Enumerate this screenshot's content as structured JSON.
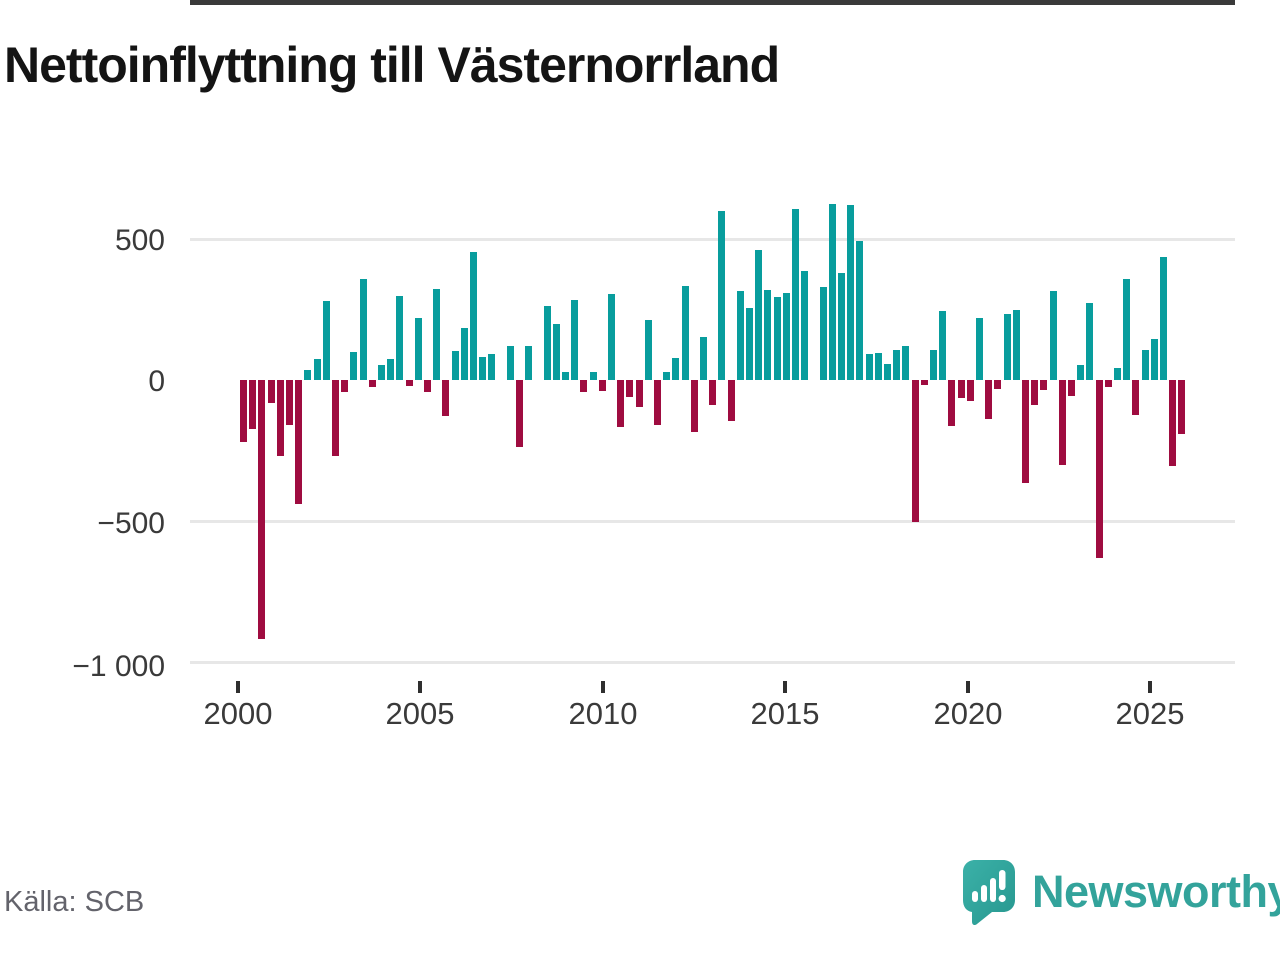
{
  "title": "Nettoinflyttning till Västernorrland",
  "source": "Källa: SCB",
  "logo": {
    "text": "Newsworthy"
  },
  "chart_data": {
    "type": "bar",
    "title": "Nettoinflyttning till Västernorrland",
    "xlabel": "",
    "ylabel": "",
    "frequency": "quarterly",
    "grid": true,
    "legend": false,
    "ylim": [
      -1000,
      650
    ],
    "y_ticks": [
      500,
      0,
      -500,
      -1000
    ],
    "y_tick_labels": [
      "500",
      "0",
      "−500",
      "−1 000"
    ],
    "x_tick_labels": [
      "2000",
      "2005",
      "2010",
      "2015",
      "2020",
      "2025"
    ],
    "colors": {
      "positive": "#089d9d",
      "negative": "#9f0c40"
    },
    "x": [
      "2000K1",
      "2000K2",
      "2000K3",
      "2000K4",
      "2001K1",
      "2001K2",
      "2001K3",
      "2001K4",
      "2002K1",
      "2002K2",
      "2002K3",
      "2002K4",
      "2003K1",
      "2003K2",
      "2003K3",
      "2003K4",
      "2004K1",
      "2004K2",
      "2004K3",
      "2004K4",
      "2005K1",
      "2005K2",
      "2005K3",
      "2005K4",
      "2006K1",
      "2006K2",
      "2006K3",
      "2006K4",
      "2007K1",
      "2007K2",
      "2007K3",
      "2007K4",
      "2008K1",
      "2008K2",
      "2008K3",
      "2008K4",
      "2009K1",
      "2009K2",
      "2009K3",
      "2009K4",
      "2010K1",
      "2010K2",
      "2010K3",
      "2010K4",
      "2011K1",
      "2011K2",
      "2011K3",
      "2011K4",
      "2012K1",
      "2012K2",
      "2012K3",
      "2012K4",
      "2013K1",
      "2013K2",
      "2013K3",
      "2013K4",
      "2014K1",
      "2014K2",
      "2014K3",
      "2014K4",
      "2015K1",
      "2015K2",
      "2015K3",
      "2015K4",
      "2016K1",
      "2016K2",
      "2016K3",
      "2016K4",
      "2017K1",
      "2017K2",
      "2017K3",
      "2017K4",
      "2018K1",
      "2018K2",
      "2018K3",
      "2018K4",
      "2019K1",
      "2019K2",
      "2019K3",
      "2019K4",
      "2020K1",
      "2020K2",
      "2020K3",
      "2020K4",
      "2021K1",
      "2021K2",
      "2021K3",
      "2021K4",
      "2022K1",
      "2022K2",
      "2022K3",
      "2022K4",
      "2023K1",
      "2023K2",
      "2023K3",
      "2023K4",
      "2024K1",
      "2024K2",
      "2024K3",
      "2024K4",
      "2025K1",
      "2025K2",
      "2025K3"
    ],
    "values": [
      -220,
      -175,
      -920,
      -80,
      -270,
      -160,
      -440,
      35,
      75,
      280,
      -270,
      -43,
      100,
      357,
      -24,
      55,
      73,
      298,
      -21,
      220,
      -42,
      323,
      -129,
      104,
      186,
      454,
      80,
      93,
      0,
      121,
      -236,
      122,
      0,
      264,
      200,
      27,
      283,
      -42,
      28,
      -40,
      304,
      -165,
      -60,
      -95,
      213,
      -158,
      27,
      77,
      332,
      -184,
      152,
      -90,
      600,
      -146,
      317,
      256,
      461,
      320,
      294,
      310,
      605,
      387,
      0,
      329,
      626,
      378,
      622,
      493,
      92,
      97,
      57,
      107,
      119,
      -502,
      -18,
      106,
      245,
      -163,
      -64,
      -74,
      220,
      -139,
      -30,
      233,
      250,
      -365,
      -87,
      -35,
      315,
      -300,
      -55,
      53,
      272,
      -630,
      -25,
      42,
      360,
      -124,
      108,
      146,
      435,
      -305,
      -190
    ]
  }
}
